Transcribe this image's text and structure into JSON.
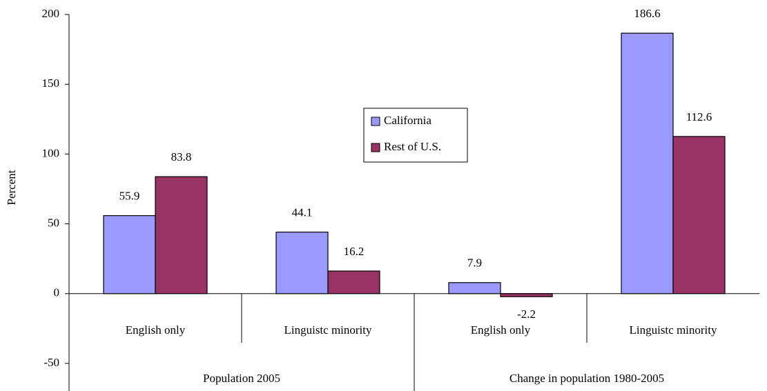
{
  "chart_data": {
    "type": "bar",
    "y_label": "Percent",
    "categories": [
      "English only",
      "Linguistc minority",
      "English only",
      "Linguistc minority"
    ],
    "category_groups": [
      "Population 2005",
      "Change in population 1980-2005"
    ],
    "series": [
      {
        "name": "California",
        "color": "#9999ff",
        "values": [
          55.9,
          44.1,
          7.9,
          186.6
        ]
      },
      {
        "name": "Rest of U.S.",
        "color": "#993366",
        "values": [
          83.8,
          16.2,
          -2.2,
          112.6
        ]
      }
    ],
    "ylim": [
      -50,
      200
    ],
    "yticks": [
      -50,
      0,
      50,
      100,
      150,
      200
    ],
    "grid": false
  }
}
